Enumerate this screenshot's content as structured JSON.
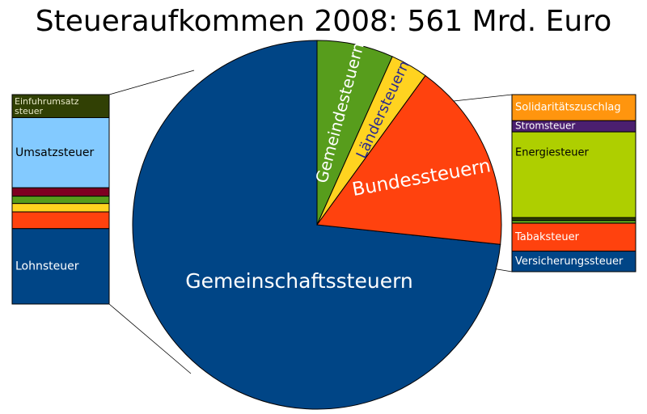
{
  "chart_data": {
    "type": "pie",
    "title": "Steueraufkommen 2008: 561 Mrd. Euro",
    "slices": [
      {
        "label": "Gemeinschaftssteuern",
        "value": 73.3,
        "color": "#004586"
      },
      {
        "label": "Gemeindesteuern",
        "value": 6.7,
        "color": "#579d1c"
      },
      {
        "label": "Ländersteuern",
        "value": 3.3,
        "color": "#ffd320"
      },
      {
        "label": "Bundessteuern",
        "value": 16.7,
        "color": "#ff420e"
      }
    ],
    "left_breakdown": {
      "of": "Gemeinschaftssteuern",
      "segments": [
        {
          "label": "Einfuhrumsatz steuer",
          "value": 11.0,
          "color": "#314004"
        },
        {
          "label": "Umsatzsteuer",
          "value": 33.5,
          "color": "#83caff"
        },
        {
          "label": "",
          "value": 4.0,
          "color": "#7e0021"
        },
        {
          "label": "",
          "value": 3.5,
          "color": "#579d1c"
        },
        {
          "label": "",
          "value": 4.0,
          "color": "#ffd320"
        },
        {
          "label": "",
          "value": 8.0,
          "color": "#ff420e"
        },
        {
          "label": "Lohnsteuer",
          "value": 36.0,
          "color": "#004586"
        }
      ]
    },
    "right_breakdown": {
      "of": "Bundessteuern",
      "segments": [
        {
          "label": "Solidaritätszuschlag",
          "value": 14.0,
          "color": "#ff950e"
        },
        {
          "label": "Stromsteuer",
          "value": 6.0,
          "color": "#4b1f6f"
        },
        {
          "label": "Energiesteuer",
          "value": 46.0,
          "color": "#aecf00"
        },
        {
          "label": "",
          "value": 1.5,
          "color": "#314004"
        },
        {
          "label": "",
          "value": 1.5,
          "color": "#579d1c"
        },
        {
          "label": "Tabaksteuer",
          "value": 15.0,
          "color": "#ff420e"
        },
        {
          "label": "Versicherungssteuer",
          "value": 11.0,
          "color": "#004586"
        }
      ]
    }
  }
}
